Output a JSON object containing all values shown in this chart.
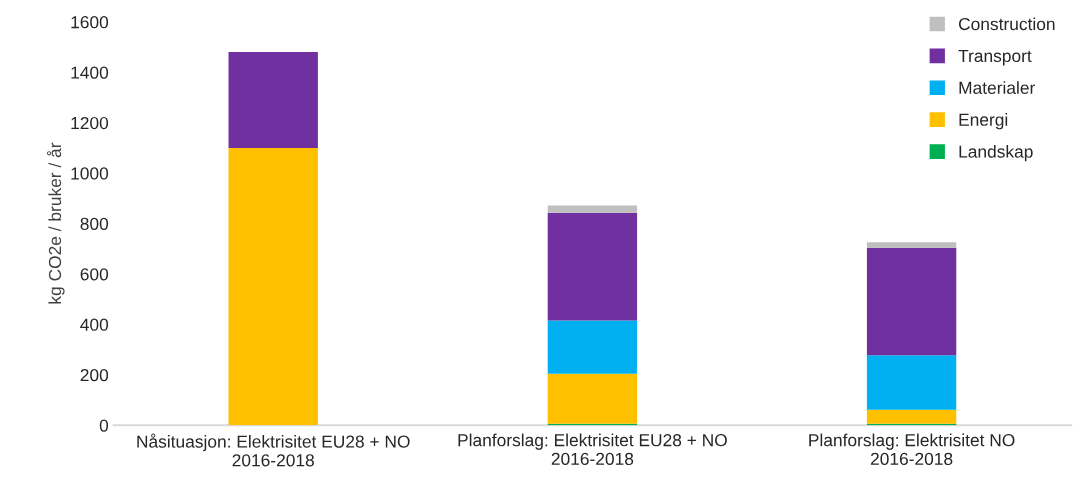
{
  "chart_data": {
    "type": "bar",
    "stacked": true,
    "ylabel": "kg CO2e / bruker / år",
    "categories": [
      "Nåsituasjon: Elektrisitet EU28 + NO 2016-2018",
      "Planforslag: Elektrisitet EU28 + NO 2016-2018",
      "Planforslag: Elektrisitet NO 2016-2018"
    ],
    "series": [
      {
        "name": "Landskap",
        "color": "#00b050",
        "values": [
          null,
          6,
          6
        ]
      },
      {
        "name": "Energi",
        "color": "#ffc000",
        "values": [
          1100,
          198,
          55
        ]
      },
      {
        "name": "Materialer",
        "color": "#00b0f0",
        "values": [
          null,
          211,
          217
        ]
      },
      {
        "name": "Transport",
        "color": "#7030a0",
        "values": [
          380,
          428,
          426
        ]
      },
      {
        "name": "Construction",
        "color": "#bfbfbf",
        "values": [
          null,
          29,
          22
        ]
      }
    ],
    "ylim": [
      0,
      1600
    ],
    "yticks": [
      0,
      200,
      400,
      600,
      800,
      1000,
      1200,
      1400,
      1600
    ],
    "grid": false,
    "legend": "top right"
  }
}
